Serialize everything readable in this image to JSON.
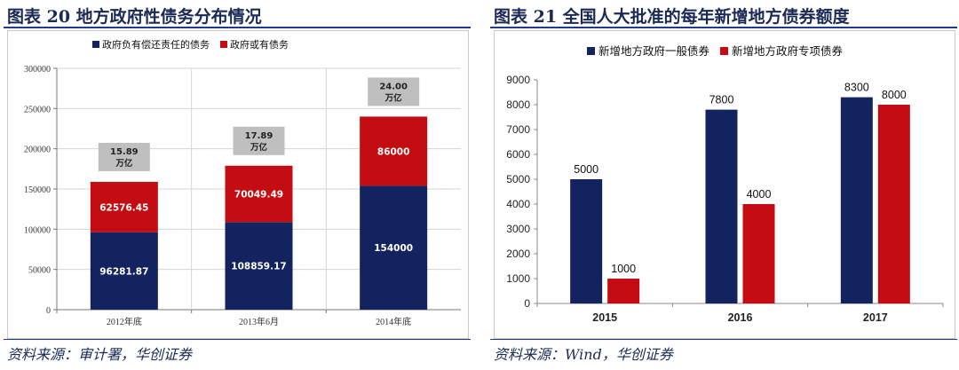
{
  "figures": [
    {
      "title": "图表 20    地方政府性债务分布情况",
      "source": "资料来源：审计署，华创证券"
    },
    {
      "title": "图表 21    全国人大批准的每年新增地方债券额度",
      "source": "资料来源：Wind，华创证券"
    }
  ],
  "chart_data": [
    {
      "type": "bar",
      "stacked": true,
      "categories": [
        "2012年底",
        "2013年6月",
        "2014年底"
      ],
      "series": [
        {
          "name": "政府负有偿还责任的债务",
          "values": [
            96281.87,
            108859.17,
            154000
          ],
          "labels": [
            "96281.87",
            "108859.17",
            "154000"
          ],
          "color": "#13235f"
        },
        {
          "name": "政府或有债务",
          "values": [
            62576.45,
            70049.49,
            86000
          ],
          "labels": [
            "62576.45",
            "70049.49",
            "86000"
          ],
          "color": "#c30d12"
        }
      ],
      "annotations": [
        {
          "line1": "15.89",
          "line2": "万亿"
        },
        {
          "line1": "17.89",
          "line2": "万亿"
        },
        {
          "line1": "24.00",
          "line2": "万亿"
        }
      ],
      "ylim": [
        0,
        300000
      ],
      "yticks": [
        "0",
        "50000",
        "100000",
        "150000",
        "200000",
        "250000",
        "300000"
      ],
      "legend_position": "top-left",
      "grid": true
    },
    {
      "type": "bar",
      "stacked": false,
      "categories": [
        "2015",
        "2016",
        "2017"
      ],
      "series": [
        {
          "name": "新增地方政府一般债券",
          "values": [
            5000,
            7800,
            8300
          ],
          "labels": [
            "5000",
            "7800",
            "8300"
          ],
          "color": "#13235f"
        },
        {
          "name": "新增地方政府专项债券",
          "values": [
            1000,
            4000,
            8000
          ],
          "labels": [
            "1000",
            "4000",
            "8000"
          ],
          "color": "#c30d12"
        }
      ],
      "ylim": [
        0,
        9000
      ],
      "yticks": [
        "0",
        "1000",
        "2000",
        "3000",
        "4000",
        "5000",
        "6000",
        "7000",
        "8000",
        "9000"
      ],
      "legend_position": "top-left",
      "grid": false
    }
  ]
}
